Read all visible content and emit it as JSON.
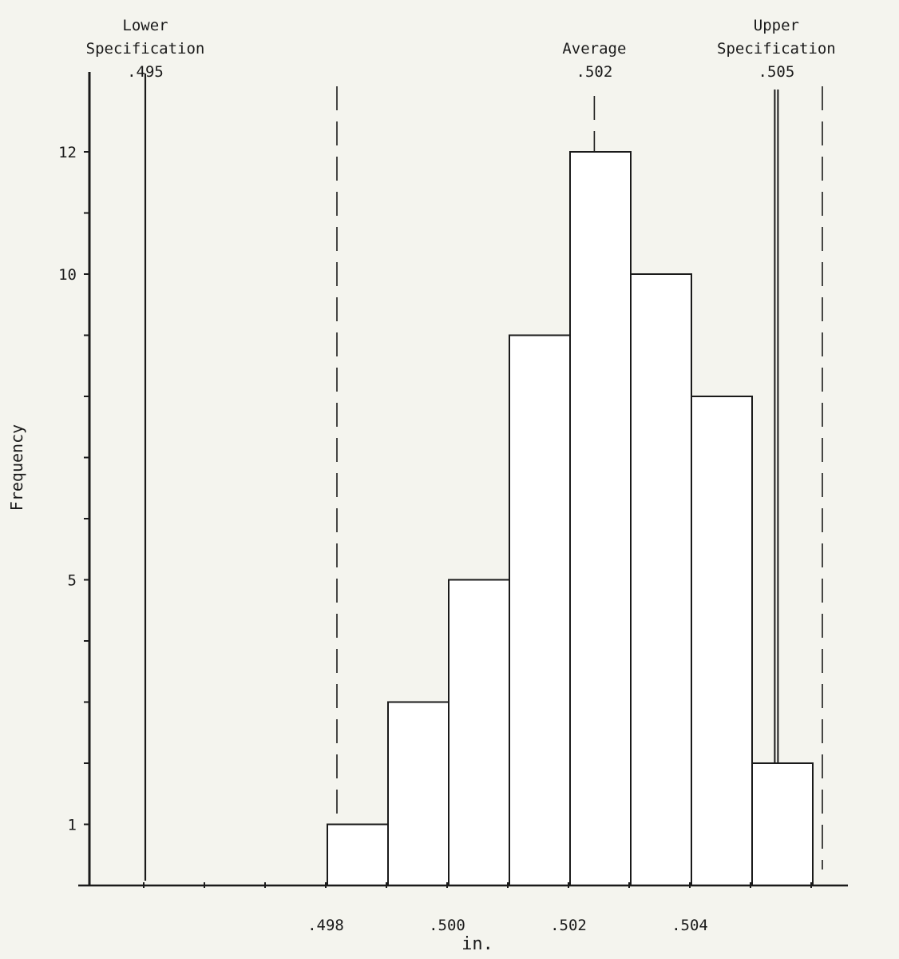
{
  "chart_data": {
    "type": "bar",
    "title": "",
    "xlabel": "in.",
    "ylabel": "Frequency",
    "x_tick_labels": [
      ".498",
      ".500",
      ".502",
      ".504"
    ],
    "x_tick_values": [
      0.498,
      0.5,
      0.502,
      0.504
    ],
    "y_tick_labels": [
      "1",
      "5",
      "10",
      "12"
    ],
    "y_tick_values": [
      1,
      5,
      10,
      12
    ],
    "xlim": [
      0.4935,
      0.5065
    ],
    "ylim": [
      0,
      13
    ],
    "bin_edges": [
      0.498,
      0.499,
      0.5,
      0.501,
      0.502,
      0.503,
      0.504,
      0.505,
      0.506
    ],
    "values": [
      1,
      3,
      5,
      9,
      12,
      10,
      8,
      2
    ],
    "reference_lines": [
      {
        "label_lines": [
          "Lower",
          "Specification",
          ".495"
        ],
        "value": 0.495,
        "style": "solid"
      },
      {
        "label_lines": [
          "Average",
          ".502"
        ],
        "value": 0.5024,
        "style": "dashed"
      },
      {
        "label_lines": [
          "Upper",
          "Specification",
          ".505"
        ],
        "value": 0.5054,
        "style": "double"
      }
    ],
    "extra_dashed_lines": [
      0.498,
      0.506
    ],
    "grid": false,
    "colors": {
      "background": "#f4f4ee",
      "ink": "#1a1a1a",
      "bar_fill": "#ffffff"
    }
  }
}
